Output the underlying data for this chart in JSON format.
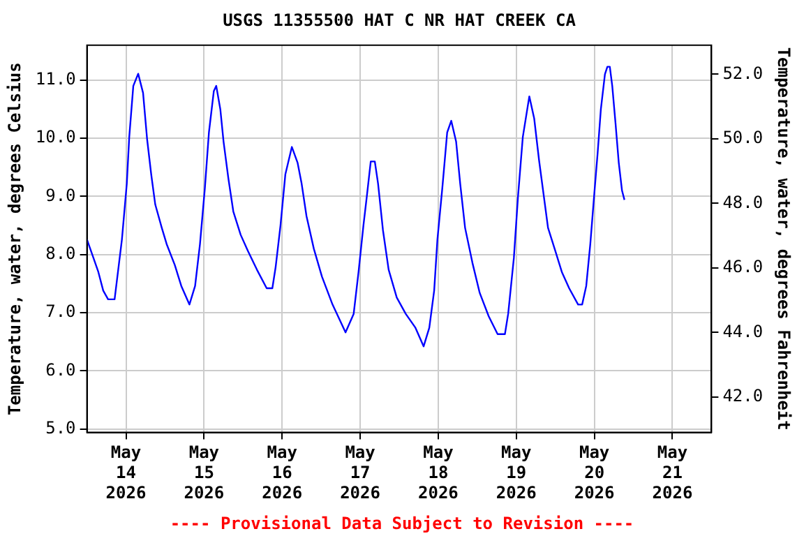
{
  "chart_data": {
    "type": "line",
    "title": "USGS 11355500 HAT C NR HAT CREEK CA",
    "ylabel": "Temperature, water, degrees Celsius",
    "y2label": "Temperature, water, degrees Fahrenheit",
    "annotations": [
      "---- Provisional Data Subject to Revision ----"
    ],
    "xlim": [
      "2026-05-13T12:00",
      "2026-05-21T12:00"
    ],
    "xticks": [
      {
        "value": "2026-05-14",
        "label": "May\n14\n2026"
      },
      {
        "value": "2026-05-15",
        "label": "May\n15\n2026"
      },
      {
        "value": "2026-05-16",
        "label": "May\n16\n2026"
      },
      {
        "value": "2026-05-17",
        "label": "May\n17\n2026"
      },
      {
        "value": "2026-05-18",
        "label": "May\n18\n2026"
      },
      {
        "value": "2026-05-19",
        "label": "May\n19\n2026"
      },
      {
        "value": "2026-05-20",
        "label": "May\n20\n2026"
      },
      {
        "value": "2026-05-21",
        "label": "May\n21\n2026"
      }
    ],
    "ylim": [
      4.94,
      11.6
    ],
    "yticks": [
      {
        "value": 5,
        "label": "5.0"
      },
      {
        "value": 6,
        "label": "6.0"
      },
      {
        "value": 7,
        "label": "7.0"
      },
      {
        "value": 8,
        "label": "8.0"
      },
      {
        "value": 9,
        "label": "9.0"
      },
      {
        "value": 10,
        "label": "10.0"
      },
      {
        "value": 11,
        "label": "11.0"
      }
    ],
    "y2lim": [
      40.9,
      52.9
    ],
    "y2ticks": [
      {
        "value": 42,
        "label": "42.0"
      },
      {
        "value": 44,
        "label": "44.0"
      },
      {
        "value": 46,
        "label": "46.0"
      },
      {
        "value": 48,
        "label": "48.0"
      },
      {
        "value": 50,
        "label": "50.0"
      },
      {
        "value": 52,
        "label": "52.0"
      }
    ],
    "grid": true,
    "legend": false,
    "marker": "none",
    "line_style": "solid",
    "series": [
      {
        "color": "#0000ff",
        "x": [
          "2026-05-13T12:00",
          "2026-05-13T14:00",
          "2026-05-13T15:30",
          "2026-05-13T17:00",
          "2026-05-13T18:30",
          "2026-05-13T20:30",
          "2026-05-13T22:45",
          "2026-05-14T00:15",
          "2026-05-14T01:00",
          "2026-05-14T02:15",
          "2026-05-14T03:45",
          "2026-05-14T05:15",
          "2026-05-14T06:30",
          "2026-05-14T07:45",
          "2026-05-14T09:00",
          "2026-05-14T11:00",
          "2026-05-14T12:30",
          "2026-05-14T15:00",
          "2026-05-14T17:00",
          "2026-05-14T19:30",
          "2026-05-14T21:15",
          "2026-05-14T22:45",
          "2026-05-15T00:15",
          "2026-05-15T01:30",
          "2026-05-15T03:00",
          "2026-05-15T03:45",
          "2026-05-15T05:00",
          "2026-05-15T06:00",
          "2026-05-15T07:30",
          "2026-05-15T09:00",
          "2026-05-15T11:15",
          "2026-05-15T13:30",
          "2026-05-15T16:15",
          "2026-05-15T19:15",
          "2026-05-15T21:00",
          "2026-05-15T22:00",
          "2026-05-15T23:30",
          "2026-05-16T01:00",
          "2026-05-16T03:00",
          "2026-05-16T04:45",
          "2026-05-16T06:00",
          "2026-05-16T07:30",
          "2026-05-16T09:45",
          "2026-05-16T12:15",
          "2026-05-16T15:30",
          "2026-05-16T19:30",
          "2026-05-16T22:00",
          "2026-05-16T23:30",
          "2026-05-17T01:00",
          "2026-05-17T02:00",
          "2026-05-17T03:15",
          "2026-05-17T04:30",
          "2026-05-17T05:30",
          "2026-05-17T07:00",
          "2026-05-17T08:45",
          "2026-05-17T11:15",
          "2026-05-17T14:00",
          "2026-05-17T17:00",
          "2026-05-17T19:30",
          "2026-05-17T21:15",
          "2026-05-17T22:45",
          "2026-05-17T23:45",
          "2026-05-18T01:15",
          "2026-05-18T02:45",
          "2026-05-18T04:00",
          "2026-05-18T05:30",
          "2026-05-18T06:45",
          "2026-05-18T08:15",
          "2026-05-18T10:30",
          "2026-05-18T12:45",
          "2026-05-18T15:30",
          "2026-05-18T18:15",
          "2026-05-18T20:30",
          "2026-05-18T21:30",
          "2026-05-18T23:15",
          "2026-05-19T00:30",
          "2026-05-19T02:00",
          "2026-05-19T04:00",
          "2026-05-19T05:30",
          "2026-05-19T07:00",
          "2026-05-19T09:45",
          "2026-05-19T12:00",
          "2026-05-19T14:00",
          "2026-05-19T16:15",
          "2026-05-19T19:00",
          "2026-05-19T20:15",
          "2026-05-19T21:30",
          "2026-05-19T22:45",
          "2026-05-20T00:00",
          "2026-05-20T01:00",
          "2026-05-20T02:00",
          "2026-05-20T03:15",
          "2026-05-20T04:00",
          "2026-05-20T04:45",
          "2026-05-20T05:30",
          "2026-05-20T06:30",
          "2026-05-20T07:30",
          "2026-05-20T08:30",
          "2026-05-20T09:15"
        ],
        "values": [
          8.26,
          7.94,
          7.7,
          7.38,
          7.23,
          7.23,
          8.26,
          9.22,
          10.02,
          10.9,
          11.11,
          10.78,
          9.98,
          9.38,
          8.86,
          8.46,
          8.18,
          7.82,
          7.46,
          7.14,
          7.46,
          8.18,
          9.14,
          10.1,
          10.81,
          10.9,
          10.5,
          9.94,
          9.3,
          8.74,
          8.34,
          8.06,
          7.74,
          7.42,
          7.42,
          7.78,
          8.5,
          9.38,
          9.85,
          9.58,
          9.22,
          8.66,
          8.1,
          7.62,
          7.14,
          6.66,
          6.98,
          7.7,
          8.5,
          8.98,
          9.6,
          9.6,
          9.22,
          8.42,
          7.74,
          7.26,
          6.98,
          6.74,
          6.42,
          6.74,
          7.38,
          8.26,
          9.14,
          10.1,
          10.3,
          9.94,
          9.22,
          8.46,
          7.86,
          7.34,
          6.94,
          6.63,
          6.63,
          6.98,
          7.94,
          8.98,
          10.02,
          10.72,
          10.34,
          9.62,
          8.46,
          8.06,
          7.7,
          7.42,
          7.14,
          7.14,
          7.46,
          8.18,
          9.06,
          9.74,
          10.5,
          11.1,
          11.23,
          11.23,
          10.9,
          10.26,
          9.58,
          9.1,
          8.94
        ]
      }
    ]
  }
}
